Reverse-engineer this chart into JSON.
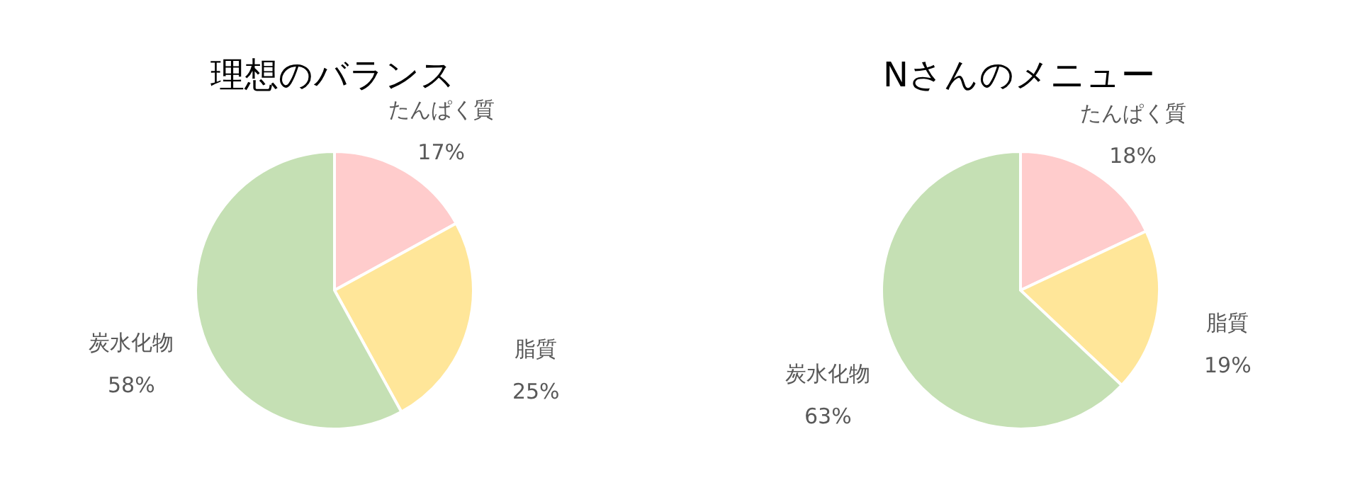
{
  "chart_data": [
    {
      "type": "pie",
      "title": "理想のバランス",
      "categories": [
        "たんぱく質",
        "脂質",
        "炭水化物"
      ],
      "values": [
        17,
        25,
        58
      ],
      "value_labels": [
        "17%",
        "25%",
        "58%"
      ],
      "colors": [
        "#ffcccc",
        "#ffe699",
        "#c5e0b4"
      ],
      "legend": false
    },
    {
      "type": "pie",
      "title": "Nさんのメニュー",
      "categories": [
        "たんぱく質",
        "脂質",
        "炭水化物"
      ],
      "values": [
        18,
        19,
        63
      ],
      "value_labels": [
        "18%",
        "19%",
        "63%"
      ],
      "colors": [
        "#ffcccc",
        "#ffe699",
        "#c5e0b4"
      ],
      "legend": false
    }
  ]
}
